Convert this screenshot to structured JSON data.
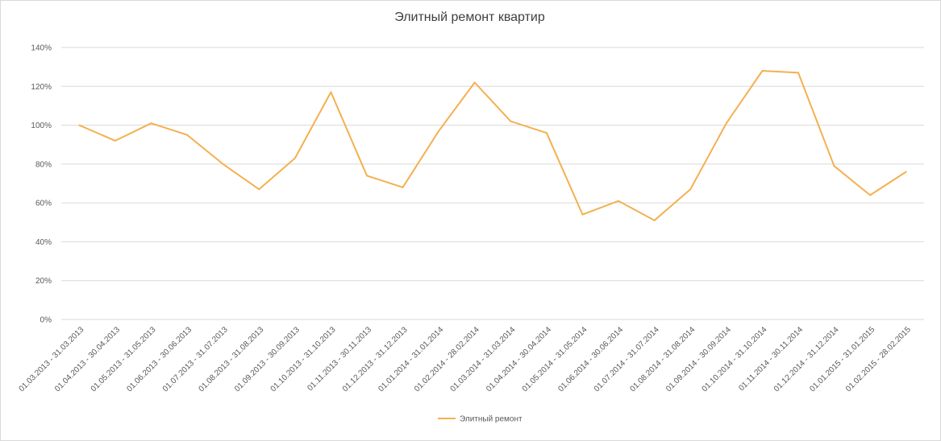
{
  "chart_data": {
    "type": "line",
    "title": "Элитный ремонт квартир",
    "xlabel": "",
    "ylabel": "",
    "ylim": [
      0,
      1.4
    ],
    "yticks": [
      0,
      0.2,
      0.4,
      0.6,
      0.8,
      1.0,
      1.2,
      1.4
    ],
    "ytick_labels": [
      "0%",
      "20%",
      "40%",
      "60%",
      "80%",
      "100%",
      "120%",
      "140%"
    ],
    "grid": true,
    "legend_position": "bottom",
    "categories": [
      "01.03.2013 - 31.03.2013",
      "01.04.2013 - 30.04.2013",
      "01.05.2013 - 31.05.2013",
      "01.06.2013 - 30.06.2013",
      "01.07.2013 - 31.07.2013",
      "01.08.2013 - 31.08.2013",
      "01.09.2013 - 30.09.2013",
      "01.10.2013 - 31.10.2013",
      "01.11.2013 - 30.11.2013",
      "01.12.2013 - 31.12.2013",
      "01.01.2014 - 31.01.2014",
      "01.02.2014 - 28.02.2014",
      "01.03.2014 - 31.03.2014",
      "01.04.2014 - 30.04.2014",
      "01.05.2014 - 31.05.2014",
      "01.06.2014 - 30.06.2014",
      "01.07.2014 - 31.07.2014",
      "01.08.2014 - 31.08.2014",
      "01.09.2014 - 30.09.2014",
      "01.10.2014 - 31.10.2014",
      "01.11.2014 - 30.11.2014",
      "01.12.2014 - 31.12.2014",
      "01.01.2015 - 31.01.2015",
      "01.02.2015 - 28.02.2015"
    ],
    "series": [
      {
        "name": "Элитный ремонт",
        "color": "#F4B050",
        "values": [
          1.0,
          0.92,
          1.01,
          0.95,
          0.8,
          0.67,
          0.83,
          1.17,
          0.74,
          0.68,
          0.97,
          1.22,
          1.02,
          0.96,
          0.54,
          0.61,
          0.51,
          0.67,
          1.01,
          1.28,
          1.27,
          0.79,
          0.64,
          0.76
        ]
      }
    ],
    "colors": {
      "grid": "#d9d9d9",
      "axis_text": "#595959",
      "title": "#404040"
    }
  }
}
